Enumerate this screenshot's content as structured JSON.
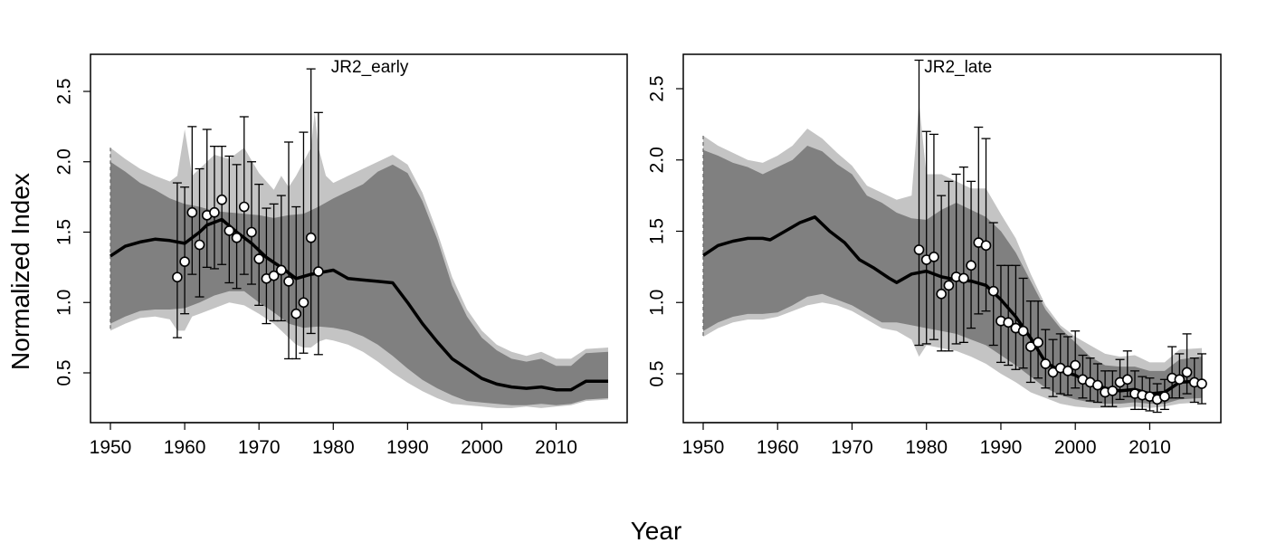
{
  "figure": {
    "xlabel": "Year",
    "ylabel": "Normalized Index"
  },
  "colors": {
    "outer_band": "#c4c4c4",
    "inner_band": "#808080",
    "median_line": "#000000",
    "points_fill": "#ffffff",
    "points_stroke": "#000000"
  },
  "chart_data": [
    {
      "type": "line",
      "title": "JR2_early",
      "xlim": [
        1950,
        2017
      ],
      "ylim": [
        0.3,
        2.7
      ],
      "xticks": [
        1950,
        1960,
        1970,
        1980,
        1990,
        2000,
        2010
      ],
      "yticks": [
        0.5,
        1.0,
        1.5,
        2.0,
        2.5
      ],
      "ytick_labels": [
        "0.5",
        "1.0",
        "1.5",
        "2.0",
        "2.5"
      ],
      "median": {
        "x": [
          1950,
          1952,
          1954,
          1956,
          1958,
          1960,
          1962,
          1963,
          1965,
          1967,
          1969,
          1971,
          1973,
          1975,
          1977,
          1978,
          1980,
          1982,
          1984,
          1986,
          1988,
          1990,
          1992,
          1994,
          1996,
          1998,
          2000,
          2002,
          2004,
          2006,
          2008,
          2010,
          2012,
          2014,
          2017
        ],
        "y": [
          1.33,
          1.4,
          1.43,
          1.45,
          1.44,
          1.42,
          1.5,
          1.55,
          1.59,
          1.5,
          1.42,
          1.32,
          1.25,
          1.17,
          1.2,
          1.21,
          1.23,
          1.17,
          1.16,
          1.15,
          1.14,
          1.0,
          0.85,
          0.72,
          0.6,
          0.53,
          0.46,
          0.42,
          0.4,
          0.39,
          0.4,
          0.38,
          0.38,
          0.44,
          0.44
        ]
      },
      "inner_band": {
        "x": [
          1950,
          1952,
          1954,
          1956,
          1958,
          1960,
          1962,
          1964,
          1966,
          1968,
          1970,
          1972,
          1974,
          1976,
          1978,
          1980,
          1982,
          1984,
          1986,
          1988,
          1990,
          1992,
          1994,
          1996,
          1998,
          2000,
          2002,
          2004,
          2006,
          2008,
          2010,
          2012,
          2014,
          2017
        ],
        "upper": [
          2.0,
          1.93,
          1.85,
          1.8,
          1.74,
          1.7,
          1.68,
          1.65,
          1.64,
          1.63,
          1.62,
          1.6,
          1.62,
          1.63,
          1.68,
          1.74,
          1.79,
          1.84,
          1.93,
          1.98,
          1.92,
          1.72,
          1.45,
          1.12,
          0.9,
          0.75,
          0.66,
          0.6,
          0.58,
          0.6,
          0.55,
          0.55,
          0.64,
          0.65
        ],
        "lower": [
          0.85,
          0.9,
          0.94,
          0.95,
          0.95,
          0.96,
          1.0,
          1.05,
          1.08,
          1.08,
          1.0,
          0.93,
          0.85,
          0.82,
          0.83,
          0.82,
          0.8,
          0.76,
          0.7,
          0.62,
          0.53,
          0.45,
          0.39,
          0.34,
          0.3,
          0.29,
          0.28,
          0.27,
          0.27,
          0.28,
          0.27,
          0.28,
          0.31,
          0.32
        ]
      },
      "outer_band": {
        "x": [
          1950,
          1952,
          1954,
          1956,
          1958,
          1959,
          1960,
          1961,
          1962,
          1964,
          1966,
          1968,
          1970,
          1972,
          1973,
          1974,
          1975,
          1976,
          1977,
          1977.5,
          1978,
          1979,
          1980,
          1982,
          1984,
          1986,
          1988,
          1990,
          1992,
          1994,
          1996,
          1998,
          2000,
          2002,
          2004,
          2006,
          2008,
          2010,
          2012,
          2014,
          2017
        ],
        "upper": [
          2.1,
          2.02,
          1.95,
          1.9,
          1.86,
          1.9,
          2.23,
          1.9,
          1.95,
          2.05,
          2.02,
          2.1,
          1.92,
          1.8,
          1.9,
          1.82,
          1.9,
          2.0,
          2.1,
          2.35,
          2.1,
          1.9,
          1.85,
          1.9,
          1.95,
          2.0,
          2.05,
          1.98,
          1.78,
          1.5,
          1.18,
          0.95,
          0.8,
          0.7,
          0.65,
          0.62,
          0.65,
          0.6,
          0.6,
          0.67,
          0.68
        ],
        "lower": [
          0.8,
          0.85,
          0.89,
          0.9,
          0.88,
          0.8,
          0.8,
          0.9,
          0.92,
          0.96,
          1.0,
          0.98,
          0.92,
          0.85,
          0.8,
          0.75,
          0.7,
          0.68,
          0.68,
          0.7,
          0.72,
          0.74,
          0.73,
          0.7,
          0.65,
          0.58,
          0.5,
          0.43,
          0.37,
          0.32,
          0.28,
          0.27,
          0.26,
          0.25,
          0.25,
          0.26,
          0.25,
          0.26,
          0.27,
          0.3,
          0.31
        ]
      },
      "observations": {
        "x": [
          1959,
          1960,
          1961,
          1962,
          1963,
          1964,
          1965,
          1966,
          1967,
          1968,
          1969,
          1970,
          1971,
          1972,
          1973,
          1974,
          1975,
          1976,
          1977,
          1978
        ],
        "y": [
          1.18,
          1.29,
          1.64,
          1.41,
          1.62,
          1.64,
          1.73,
          1.51,
          1.46,
          1.68,
          1.5,
          1.31,
          1.17,
          1.19,
          1.23,
          1.15,
          0.92,
          1.0,
          1.46,
          1.22
        ],
        "upper": [
          1.85,
          1.82,
          2.25,
          1.95,
          2.23,
          2.11,
          2.11,
          2.04,
          1.98,
          2.32,
          2.0,
          1.84,
          1.67,
          1.7,
          1.76,
          2.14,
          1.68,
          2.21,
          2.66,
          2.35
        ],
        "lower": [
          0.75,
          0.92,
          1.2,
          1.04,
          1.25,
          1.24,
          1.27,
          1.14,
          1.1,
          1.2,
          1.13,
          0.98,
          0.85,
          0.87,
          0.87,
          0.6,
          0.6,
          0.64,
          0.78,
          0.63
        ]
      }
    },
    {
      "type": "line",
      "title": "JR2_late",
      "xlim": [
        1950,
        2017
      ],
      "ylim": [
        0.2,
        2.75
      ],
      "xticks": [
        1950,
        1960,
        1970,
        1980,
        1990,
        2000,
        2010
      ],
      "yticks": [
        0.5,
        1.0,
        1.5,
        2.0,
        2.5
      ],
      "ytick_labels": [
        "0.5",
        "1.0",
        "1.5",
        "2.0",
        "2.5"
      ],
      "median": {
        "x": [
          1950,
          1952,
          1954,
          1956,
          1958,
          1959,
          1961,
          1963,
          1965,
          1967,
          1969,
          1971,
          1973,
          1975,
          1976,
          1978,
          1980,
          1982,
          1984,
          1986,
          1988,
          1990,
          1992,
          1994,
          1996,
          1998,
          2000,
          2002,
          2004,
          2006,
          2008,
          2010,
          2012,
          2014,
          2017
        ],
        "y": [
          1.33,
          1.4,
          1.43,
          1.45,
          1.45,
          1.44,
          1.5,
          1.56,
          1.6,
          1.5,
          1.42,
          1.3,
          1.24,
          1.17,
          1.14,
          1.2,
          1.22,
          1.18,
          1.16,
          1.15,
          1.12,
          1.02,
          0.9,
          0.75,
          0.58,
          0.52,
          0.49,
          0.43,
          0.4,
          0.38,
          0.39,
          0.36,
          0.37,
          0.44,
          0.45
        ]
      },
      "inner_band": {
        "x": [
          1950,
          1952,
          1954,
          1956,
          1958,
          1960,
          1962,
          1964,
          1966,
          1968,
          1970,
          1972,
          1974,
          1976,
          1978,
          1980,
          1982,
          1984,
          1986,
          1988,
          1990,
          1992,
          1994,
          1996,
          1998,
          2000,
          2002,
          2004,
          2006,
          2008,
          2010,
          2012,
          2014,
          2017
        ],
        "upper": [
          2.07,
          2.03,
          1.98,
          1.95,
          1.9,
          1.95,
          2.0,
          2.1,
          2.06,
          1.97,
          1.9,
          1.75,
          1.7,
          1.63,
          1.59,
          1.58,
          1.65,
          1.7,
          1.65,
          1.6,
          1.5,
          1.35,
          1.15,
          0.95,
          0.82,
          0.72,
          0.62,
          0.56,
          0.55,
          0.55,
          0.52,
          0.52,
          0.6,
          0.62
        ],
        "lower": [
          0.8,
          0.86,
          0.9,
          0.92,
          0.92,
          0.93,
          0.98,
          1.04,
          1.06,
          1.02,
          0.98,
          0.92,
          0.86,
          0.86,
          0.84,
          0.82,
          0.8,
          0.78,
          0.74,
          0.7,
          0.63,
          0.56,
          0.48,
          0.4,
          0.35,
          0.32,
          0.3,
          0.29,
          0.29,
          0.3,
          0.29,
          0.29,
          0.32,
          0.33
        ]
      },
      "outer_band": {
        "x": [
          1950,
          1952,
          1954,
          1956,
          1958,
          1960,
          1962,
          1964,
          1966,
          1968,
          1970,
          1972,
          1974,
          1976,
          1978,
          1979,
          1980,
          1982,
          1984,
          1986,
          1988,
          1990,
          1992,
          1994,
          1996,
          1998,
          2000,
          2002,
          2004,
          2006,
          2008,
          2010,
          2012,
          2014,
          2017
        ],
        "upper": [
          2.17,
          2.1,
          2.05,
          2.0,
          1.98,
          2.03,
          2.1,
          2.22,
          2.15,
          2.05,
          1.96,
          1.82,
          1.77,
          1.72,
          1.75,
          2.4,
          1.9,
          1.9,
          1.85,
          1.8,
          1.8,
          1.62,
          1.45,
          1.2,
          0.98,
          0.84,
          0.76,
          0.7,
          0.64,
          0.62,
          0.63,
          0.58,
          0.58,
          0.67,
          0.68
        ],
        "lower": [
          0.76,
          0.82,
          0.86,
          0.88,
          0.88,
          0.9,
          0.94,
          0.98,
          1.0,
          0.98,
          0.94,
          0.88,
          0.82,
          0.8,
          0.74,
          0.62,
          0.7,
          0.68,
          0.66,
          0.62,
          0.57,
          0.5,
          0.44,
          0.37,
          0.33,
          0.29,
          0.27,
          0.26,
          0.26,
          0.26,
          0.27,
          0.26,
          0.27,
          0.29,
          0.3
        ]
      },
      "observations": {
        "x": [
          1979,
          1980,
          1981,
          1982,
          1983,
          1984,
          1985,
          1986,
          1987,
          1988,
          1989,
          1990,
          1991,
          1992,
          1993,
          1994,
          1995,
          1996,
          1997,
          1998,
          1999,
          2000,
          2001,
          2002,
          2003,
          2004,
          2005,
          2006,
          2007,
          2008,
          2009,
          2010,
          2011,
          2012,
          2013,
          2014,
          2015,
          2016,
          2017
        ],
        "y": [
          1.37,
          1.3,
          1.32,
          1.06,
          1.12,
          1.18,
          1.17,
          1.26,
          1.42,
          1.4,
          1.08,
          0.87,
          0.86,
          0.82,
          0.8,
          0.69,
          0.72,
          0.57,
          0.51,
          0.54,
          0.52,
          0.56,
          0.46,
          0.44,
          0.42,
          0.37,
          0.38,
          0.44,
          0.46,
          0.36,
          0.35,
          0.34,
          0.32,
          0.34,
          0.47,
          0.46,
          0.51,
          0.44,
          0.43
        ],
        "upper": [
          2.7,
          2.2,
          2.18,
          1.75,
          1.85,
          1.9,
          1.95,
          1.85,
          2.23,
          2.15,
          1.56,
          1.26,
          1.26,
          1.26,
          1.17,
          1.01,
          1.01,
          0.81,
          0.74,
          0.78,
          0.76,
          0.8,
          0.63,
          0.61,
          0.57,
          0.52,
          0.52,
          0.6,
          0.66,
          0.52,
          0.48,
          0.47,
          0.43,
          0.46,
          0.69,
          0.64,
          0.78,
          0.61,
          0.64
        ],
        "lower": [
          0.7,
          0.71,
          0.74,
          0.66,
          0.66,
          0.71,
          0.72,
          0.82,
          0.92,
          0.94,
          0.7,
          0.58,
          0.56,
          0.53,
          0.54,
          0.44,
          0.47,
          0.4,
          0.34,
          0.36,
          0.35,
          0.4,
          0.33,
          0.31,
          0.3,
          0.27,
          0.27,
          0.32,
          0.34,
          0.25,
          0.25,
          0.24,
          0.23,
          0.25,
          0.33,
          0.33,
          0.36,
          0.3,
          0.29
        ]
      }
    }
  ]
}
